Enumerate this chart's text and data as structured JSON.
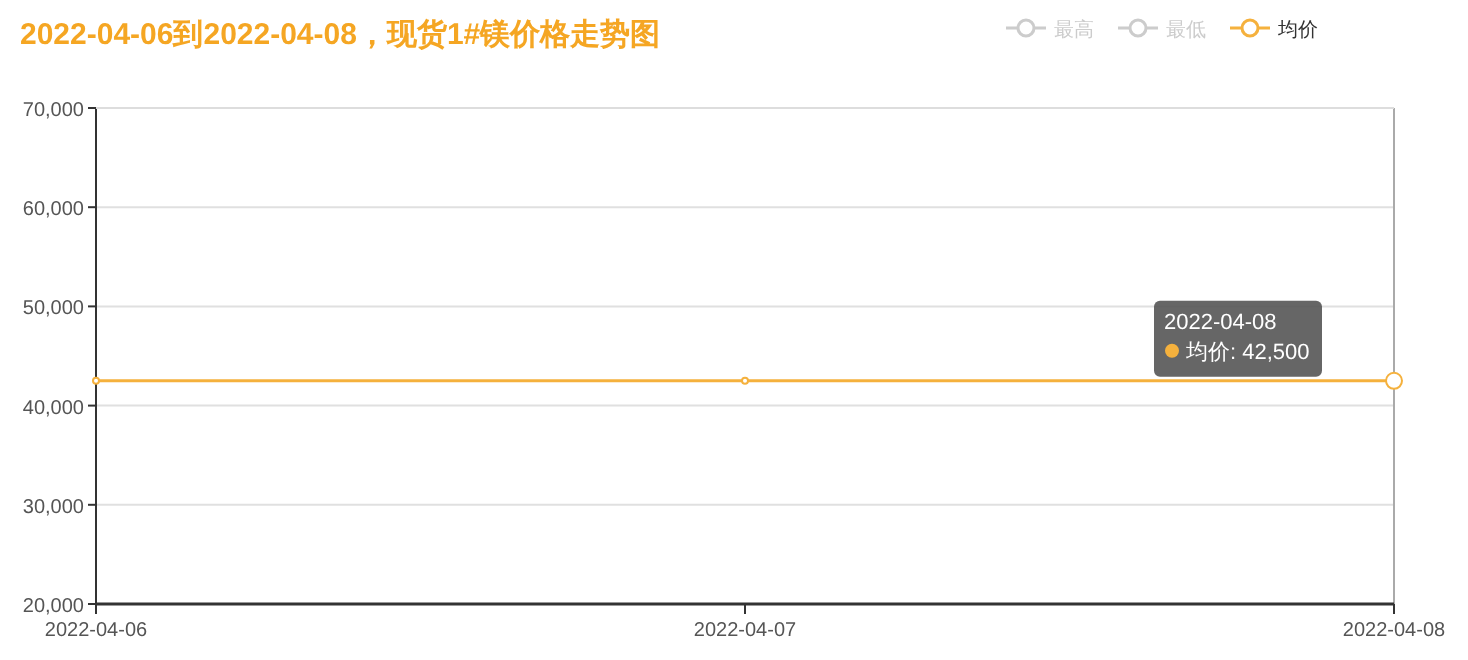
{
  "chart_data": {
    "type": "line",
    "title": "2022-04-06到2022-04-08，现货1#镁价格走势图",
    "categories": [
      "2022-04-06",
      "2022-04-07",
      "2022-04-08"
    ],
    "series": [
      {
        "name": "最高",
        "color": "#cccccc",
        "values": [
          null,
          null,
          null
        ]
      },
      {
        "name": "最低",
        "color": "#cccccc",
        "values": [
          null,
          null,
          null
        ]
      },
      {
        "name": "均价",
        "color": "#f5b13d",
        "values": [
          42500,
          42500,
          42500
        ]
      }
    ],
    "ylim": [
      20000,
      70000
    ],
    "yticks": [
      {
        "value": 20000,
        "label": "20,000"
      },
      {
        "value": 30000,
        "label": "30,000"
      },
      {
        "value": 40000,
        "label": "40,000"
      },
      {
        "value": 50000,
        "label": "50,000"
      },
      {
        "value": 60000,
        "label": "60,000"
      },
      {
        "value": 70000,
        "label": "70,000"
      }
    ],
    "grid": "y",
    "legend": "top right",
    "marker": "circle",
    "line_style": "solid",
    "annotations": [
      "2022-04-08\n均价: 42,500"
    ]
  }
}
